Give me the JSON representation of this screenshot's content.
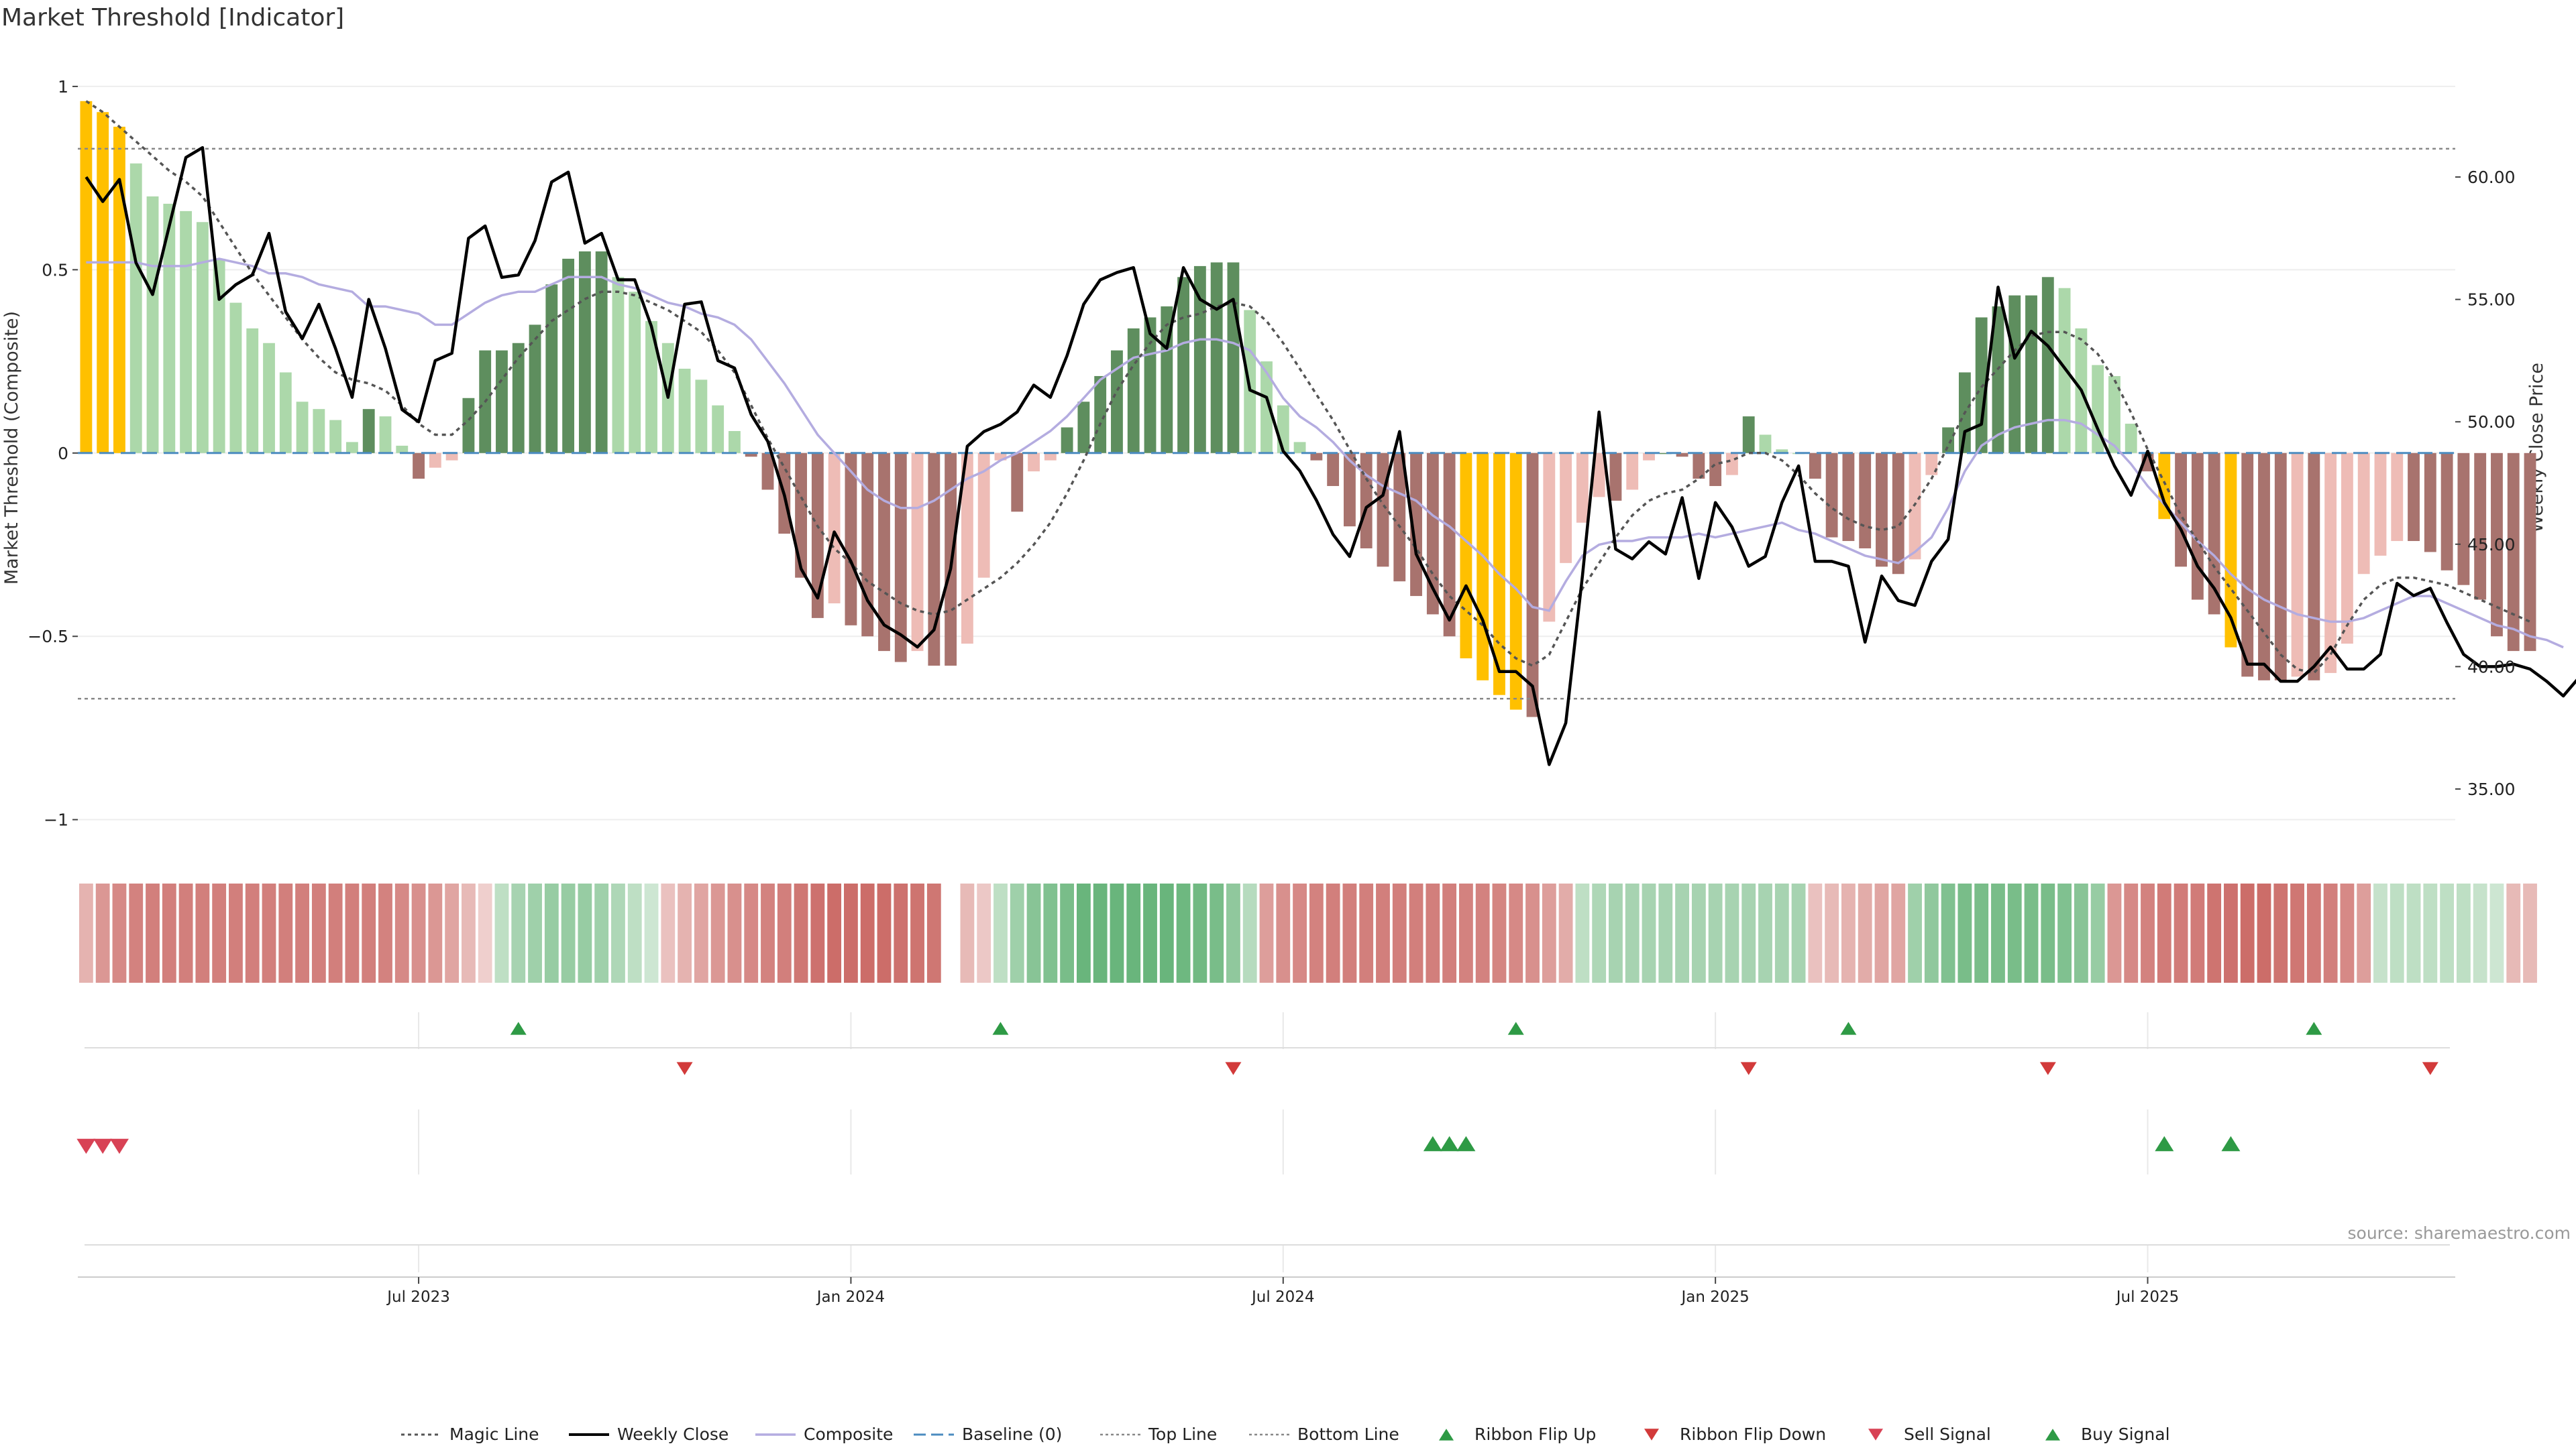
{
  "title": "Market Threshold [Indicator]",
  "source": "source: sharemaestro.com",
  "colors": {
    "gold": "#FFC000",
    "dark_green": "#5E8E5E",
    "light_green": "#ACD8AA",
    "dark_red": "#A8736E",
    "light_red": "#EEBCB6",
    "magic": "#555555",
    "close": "#000000",
    "composite": "#B4ACE0",
    "baseline": "#4C8CC0",
    "threshold_lines": "#888888",
    "ribbon_up": "#2E9A45",
    "ribbon_down": "#D23A3A",
    "sell": "#D84255",
    "buy": "#2E9A45"
  },
  "chart_data": {
    "type": "bar",
    "title": "Market Threshold [Indicator]",
    "ylabel": "Market Threshold (Composite)",
    "y2label": "Weekly Close Price",
    "ylim": [
      -1.05,
      1.02
    ],
    "y2lim": [
      33.0,
      64.0
    ],
    "yticks": [
      {
        "value": 1,
        "label": "1"
      },
      {
        "value": 0.5,
        "label": "0.5"
      },
      {
        "value": 0,
        "label": "0"
      },
      {
        "value": -0.5,
        "label": "−0.5"
      },
      {
        "value": -1,
        "label": "−1"
      }
    ],
    "y2ticks": [
      {
        "value": 60,
        "label": "60.00"
      },
      {
        "value": 55,
        "label": "55.00"
      },
      {
        "value": 50,
        "label": "50.00"
      },
      {
        "value": 45,
        "label": "45.00"
      },
      {
        "value": 40,
        "label": "40.00"
      },
      {
        "value": 35,
        "label": "35.00"
      }
    ],
    "xticks": [
      {
        "week": 20,
        "label": "Jul 2023"
      },
      {
        "week": 46,
        "label": "Jan 2024"
      },
      {
        "week": 72,
        "label": "Jul 2024"
      },
      {
        "week": 98,
        "label": "Jan 2025"
      },
      {
        "week": 124,
        "label": "Jul 2025"
      }
    ],
    "n_weeks": 143,
    "top_line": 0.83,
    "bottom_line": -0.67,
    "bars": [
      0.96,
      0.93,
      0.89,
      0.79,
      0.7,
      0.68,
      0.66,
      0.63,
      0.53,
      0.41,
      0.34,
      0.3,
      0.22,
      0.14,
      0.12,
      0.09,
      0.03,
      0.12,
      0.1,
      0.02,
      -0.07,
      -0.04,
      -0.02,
      0.15,
      0.28,
      0.28,
      0.3,
      0.35,
      0.46,
      0.53,
      0.55,
      0.55,
      0.48,
      0.44,
      0.36,
      0.3,
      0.23,
      0.2,
      0.13,
      0.06,
      -0.01,
      -0.1,
      -0.22,
      -0.34,
      -0.45,
      -0.41,
      -0.47,
      -0.5,
      -0.54,
      -0.57,
      -0.54,
      -0.58,
      -0.58,
      -0.52,
      -0.34,
      -0.02,
      -0.16,
      -0.05,
      -0.02,
      0.07,
      0.14,
      0.21,
      0.28,
      0.34,
      0.37,
      0.4,
      0.48,
      0.51,
      0.52,
      0.52,
      0.39,
      0.25,
      0.13,
      0.03,
      -0.02,
      -0.09,
      -0.2,
      -0.26,
      -0.31,
      -0.35,
      -0.39,
      -0.44,
      -0.5,
      -0.56,
      -0.62,
      -0.66,
      -0.7,
      -0.72,
      -0.46,
      -0.3,
      -0.19,
      -0.12,
      -0.13,
      -0.1,
      -0.02,
      0.0,
      -0.01,
      -0.07,
      -0.09,
      -0.06,
      0.1,
      0.05,
      0.01,
      0.0,
      -0.07,
      -0.23,
      -0.24,
      -0.26,
      -0.31,
      -0.33,
      -0.29,
      -0.06,
      0.07,
      0.22,
      0.37,
      0.4,
      0.43,
      0.43,
      0.48,
      0.45,
      0.34,
      0.24,
      0.21,
      0.08,
      -0.05,
      -0.18,
      -0.31,
      -0.4,
      -0.44,
      -0.53,
      -0.61,
      -0.62,
      -0.62,
      -0.61,
      -0.62,
      -0.6,
      -0.52,
      -0.33,
      -0.28,
      -0.24,
      -0.24,
      -0.27,
      -0.32,
      -0.36,
      -0.4,
      -0.5,
      -0.54,
      -0.54
    ],
    "series": [
      {
        "name": "Magic Line",
        "axis": "left",
        "style": "dotted",
        "values": [
          0.96,
          0.93,
          0.89,
          0.85,
          0.81,
          0.77,
          0.74,
          0.7,
          0.63,
          0.56,
          0.49,
          0.43,
          0.37,
          0.31,
          0.26,
          0.22,
          0.2,
          0.19,
          0.17,
          0.13,
          0.08,
          0.05,
          0.05,
          0.09,
          0.14,
          0.2,
          0.26,
          0.31,
          0.36,
          0.39,
          0.42,
          0.44,
          0.44,
          0.43,
          0.41,
          0.39,
          0.36,
          0.33,
          0.28,
          0.22,
          0.13,
          0.04,
          -0.04,
          -0.12,
          -0.2,
          -0.26,
          -0.3,
          -0.35,
          -0.38,
          -0.41,
          -0.43,
          -0.44,
          -0.43,
          -0.4,
          -0.37,
          -0.34,
          -0.3,
          -0.25,
          -0.19,
          -0.11,
          -0.02,
          0.08,
          0.17,
          0.24,
          0.3,
          0.35,
          0.37,
          0.38,
          0.4,
          0.41,
          0.4,
          0.36,
          0.3,
          0.23,
          0.16,
          0.09,
          0.01,
          -0.07,
          -0.14,
          -0.2,
          -0.26,
          -0.33,
          -0.39,
          -0.43,
          -0.47,
          -0.52,
          -0.56,
          -0.58,
          -0.55,
          -0.46,
          -0.37,
          -0.3,
          -0.23,
          -0.17,
          -0.13,
          -0.11,
          -0.1,
          -0.07,
          -0.03,
          -0.02,
          0.0,
          0.0,
          -0.02,
          -0.06,
          -0.11,
          -0.15,
          -0.18,
          -0.2,
          -0.21,
          -0.2,
          -0.14,
          -0.07,
          0.02,
          0.11,
          0.18,
          0.23,
          0.28,
          0.32,
          0.33,
          0.33,
          0.31,
          0.27,
          0.2,
          0.11,
          0.01,
          -0.08,
          -0.17,
          -0.24,
          -0.31,
          -0.37,
          -0.43,
          -0.49,
          -0.55,
          -0.59,
          -0.6,
          -0.55,
          -0.47,
          -0.4,
          -0.36,
          -0.34,
          -0.34,
          -0.35,
          -0.36,
          -0.38,
          -0.4,
          -0.42,
          -0.44,
          -0.46
        ]
      },
      {
        "name": "Weekly Close",
        "axis": "right",
        "style": "solid",
        "values": [
          60.0,
          59.0,
          59.9,
          56.5,
          55.2,
          58.0,
          60.8,
          61.2,
          55.0,
          55.6,
          56.0,
          57.7,
          54.5,
          53.4,
          54.8,
          53.0,
          51.0,
          55.0,
          53.0,
          50.5,
          50.0,
          52.5,
          52.8,
          57.5,
          58.0,
          55.9,
          56.0,
          57.4,
          59.8,
          60.2,
          57.3,
          57.7,
          55.8,
          55.8,
          53.9,
          51.0,
          54.8,
          54.9,
          52.5,
          52.2,
          50.3,
          49.2,
          47.0,
          44.0,
          42.8,
          45.5,
          44.3,
          42.7,
          41.7,
          41.3,
          40.8,
          41.5,
          44.0,
          49.0,
          49.6,
          49.9,
          50.4,
          51.5,
          51.0,
          52.7,
          54.8,
          55.8,
          56.1,
          56.3,
          53.6,
          53.0,
          56.3,
          55.0,
          54.6,
          55.0,
          51.3,
          51.0,
          48.8,
          48.0,
          46.8,
          45.4,
          44.5,
          46.5,
          47.0,
          49.6,
          44.6,
          43.2,
          41.9,
          43.3,
          41.9,
          39.8,
          39.8,
          39.2,
          36.0,
          37.7,
          43.7,
          50.4,
          44.8,
          44.4,
          45.1,
          44.6,
          46.9,
          43.6,
          46.7,
          45.7,
          44.1,
          44.5,
          46.7,
          48.2,
          44.3,
          44.3,
          44.1,
          41.0,
          43.7,
          42.7,
          42.5,
          44.3,
          45.2,
          49.6,
          49.9,
          55.5,
          52.6,
          53.7,
          53.1,
          52.2,
          51.3,
          49.7,
          48.2,
          47.0,
          48.8,
          46.7,
          45.6,
          44.1,
          43.2,
          42.0,
          40.1,
          40.1,
          39.4,
          39.4,
          40.0,
          40.8,
          39.9,
          39.9,
          40.5,
          43.4,
          42.9,
          43.2,
          41.8,
          40.5,
          40.0,
          40.0,
          40.1,
          39.9,
          39.4,
          38.8,
          39.6
        ]
      },
      {
        "name": "Composite",
        "axis": "left",
        "style": "solid",
        "values": [
          0.52,
          0.52,
          0.52,
          0.52,
          0.51,
          0.51,
          0.51,
          0.52,
          0.53,
          0.52,
          0.51,
          0.49,
          0.49,
          0.48,
          0.46,
          0.45,
          0.44,
          0.4,
          0.4,
          0.39,
          0.38,
          0.35,
          0.35,
          0.38,
          0.41,
          0.43,
          0.44,
          0.44,
          0.46,
          0.48,
          0.48,
          0.48,
          0.46,
          0.45,
          0.43,
          0.41,
          0.4,
          0.38,
          0.37,
          0.35,
          0.31,
          0.25,
          0.19,
          0.12,
          0.05,
          0.0,
          -0.05,
          -0.1,
          -0.13,
          -0.15,
          -0.15,
          -0.13,
          -0.1,
          -0.07,
          -0.05,
          -0.02,
          0.0,
          0.03,
          0.06,
          0.1,
          0.15,
          0.2,
          0.23,
          0.26,
          0.27,
          0.28,
          0.3,
          0.31,
          0.31,
          0.3,
          0.28,
          0.22,
          0.15,
          0.1,
          0.07,
          0.03,
          -0.02,
          -0.06,
          -0.09,
          -0.11,
          -0.13,
          -0.17,
          -0.2,
          -0.24,
          -0.28,
          -0.33,
          -0.37,
          -0.42,
          -0.43,
          -0.35,
          -0.28,
          -0.25,
          -0.24,
          -0.24,
          -0.23,
          -0.23,
          -0.23,
          -0.22,
          -0.23,
          -0.22,
          -0.21,
          -0.2,
          -0.19,
          -0.21,
          -0.22,
          -0.24,
          -0.26,
          -0.28,
          -0.29,
          -0.3,
          -0.27,
          -0.23,
          -0.15,
          -0.05,
          0.02,
          0.05,
          0.07,
          0.08,
          0.09,
          0.09,
          0.08,
          0.05,
          0.02,
          -0.03,
          -0.09,
          -0.14,
          -0.19,
          -0.24,
          -0.28,
          -0.33,
          -0.37,
          -0.4,
          -0.42,
          -0.44,
          -0.45,
          -0.46,
          -0.46,
          -0.45,
          -0.43,
          -0.41,
          -0.39,
          -0.39,
          -0.41,
          -0.43,
          -0.45,
          -0.47,
          -0.48,
          -0.5,
          -0.51,
          -0.53
        ]
      },
      {
        "name": "Baseline (0)",
        "axis": "left",
        "style": "dashed"
      },
      {
        "name": "Top Line",
        "axis": "left",
        "style": "dotted",
        "value": 0.83
      },
      {
        "name": "Bottom Line",
        "axis": "left",
        "style": "dotted",
        "value": -0.67
      }
    ],
    "gold_weeks": [
      0,
      1,
      2,
      83,
      84,
      85,
      86,
      125,
      129
    ],
    "ribbon": [
      -0.35,
      -0.55,
      -0.65,
      -0.7,
      -0.72,
      -0.72,
      -0.72,
      -0.72,
      -0.72,
      -0.72,
      -0.72,
      -0.72,
      -0.72,
      -0.72,
      -0.72,
      -0.72,
      -0.72,
      -0.72,
      -0.7,
      -0.65,
      -0.6,
      -0.55,
      -0.45,
      -0.3,
      -0.15,
      0.3,
      0.45,
      0.5,
      0.55,
      0.55,
      0.55,
      0.5,
      0.4,
      0.3,
      0.2,
      -0.25,
      -0.35,
      -0.45,
      -0.55,
      -0.6,
      -0.65,
      -0.7,
      -0.72,
      -0.78,
      -0.82,
      -0.85,
      -0.85,
      -0.85,
      -0.85,
      -0.82,
      -0.8,
      -0.78,
      null,
      -0.3,
      -0.2,
      0.3,
      0.5,
      0.65,
      0.7,
      0.75,
      0.85,
      0.85,
      0.85,
      0.85,
      0.85,
      0.85,
      0.82,
      0.8,
      0.75,
      0.6,
      0.35,
      -0.5,
      -0.6,
      -0.65,
      -0.7,
      -0.72,
      -0.72,
      -0.72,
      -0.72,
      -0.72,
      -0.72,
      -0.72,
      -0.72,
      -0.7,
      -0.7,
      -0.68,
      -0.65,
      -0.6,
      -0.5,
      -0.4,
      0.3,
      0.4,
      0.45,
      0.45,
      0.45,
      0.45,
      0.45,
      0.45,
      0.45,
      0.45,
      0.45,
      0.45,
      0.45,
      0.45,
      -0.25,
      -0.3,
      -0.35,
      -0.4,
      -0.45,
      -0.45,
      0.5,
      0.6,
      0.7,
      0.75,
      0.75,
      0.75,
      0.75,
      0.75,
      0.75,
      0.7,
      0.65,
      0.55,
      -0.55,
      -0.65,
      -0.7,
      -0.75,
      -0.75,
      -0.75,
      -0.8,
      -0.82,
      -0.85,
      -0.85,
      -0.8,
      -0.78,
      -0.75,
      -0.72,
      -0.65,
      -0.5,
      0.25,
      0.3,
      0.3,
      0.3,
      0.3,
      0.3,
      0.25,
      0.2,
      -0.3,
      -0.3
    ],
    "ribbon_flip_up": [
      26,
      55,
      86,
      106,
      134
    ],
    "ribbon_flip_down": [
      36,
      69,
      100,
      118,
      141
    ],
    "sell_signal": [
      0,
      1,
      2
    ],
    "buy_signal": [
      81,
      82,
      83,
      125,
      129
    ],
    "legend": {
      "position": "bottom-center",
      "items": [
        "Magic Line",
        "Weekly Close",
        "Composite",
        "Baseline (0)",
        "Top Line",
        "Bottom Line",
        "Ribbon Flip Up",
        "Ribbon Flip Down",
        "Sell Signal",
        "Buy Signal"
      ]
    },
    "grid": true
  }
}
